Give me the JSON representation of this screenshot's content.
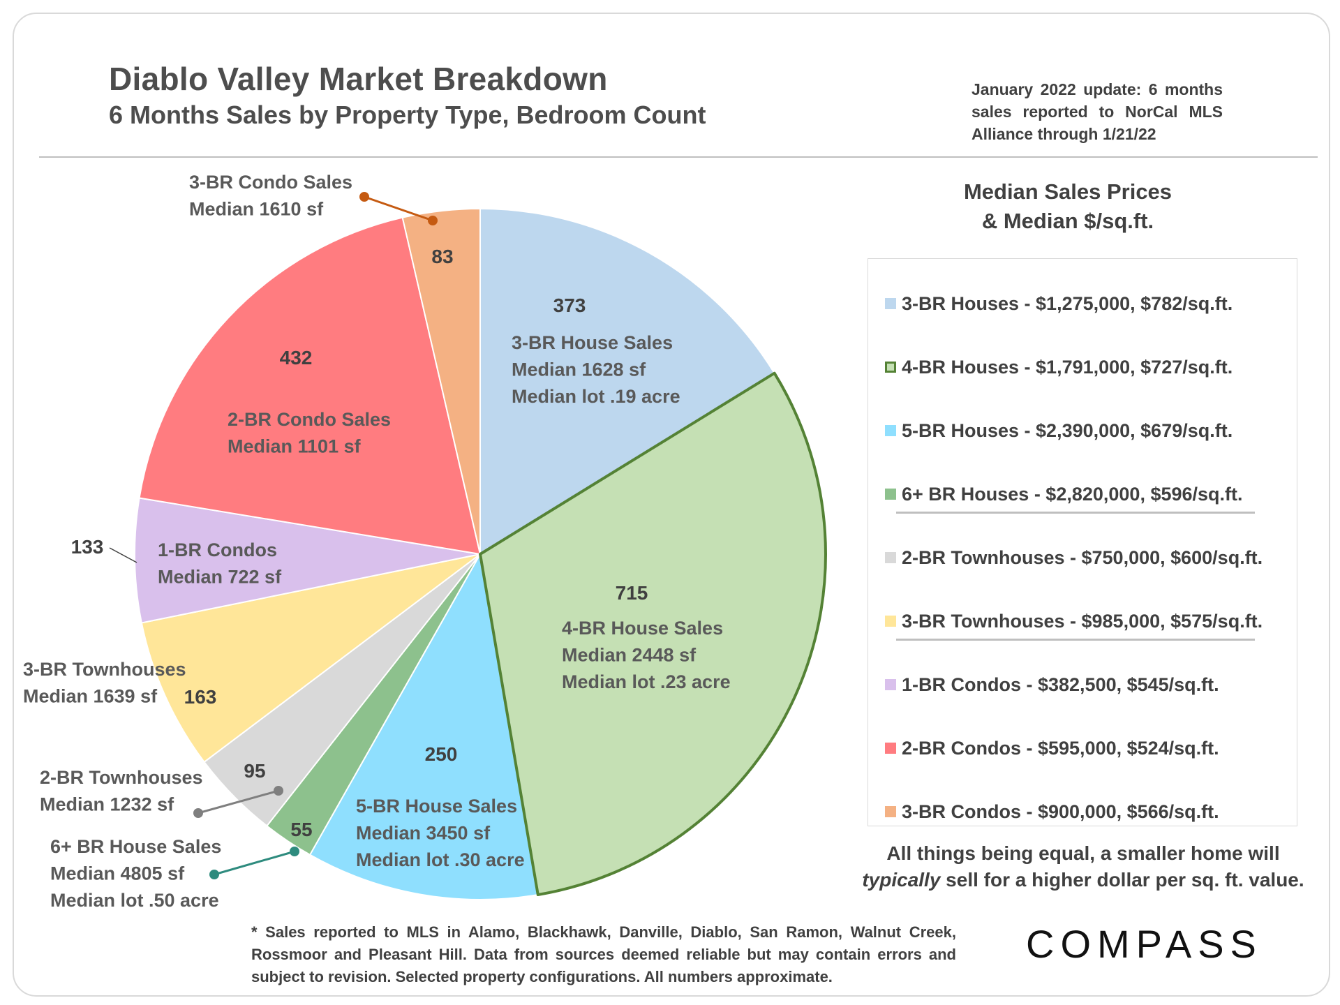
{
  "header": {
    "title": "Diablo Valley Market Breakdown",
    "subtitle": "6 Months Sales by Property Type, Bedroom Count",
    "update_note": "January 2022 update: 6 months sales reported to NorCal MLS Alliance through 1/21/22"
  },
  "legend": {
    "heading_line1": "Median Sales Prices",
    "heading_line2": "& Median $/sq.ft.",
    "items": [
      {
        "label": "3-BR Houses - $1,275,000, $782/sq.ft.",
        "color": "#bdd7ee"
      },
      {
        "label": "4-BR Houses - $1,791,000, $727/sq.ft.",
        "color": "#c5e0b4",
        "border": "#548235"
      },
      {
        "label": "5-BR Houses - $2,390,000, $679/sq.ft.",
        "color": "#8fdffe"
      },
      {
        "label": "6+ BR Houses - $2,820,000, $596/sq.ft.",
        "color": "#8dc18d"
      },
      {
        "label": "2-BR Townhouses - $750,000, $600/sq.ft.",
        "color": "#d9d9d9"
      },
      {
        "label": "3-BR Townhouses - $985,000, $575/sq.ft.",
        "color": "#ffe699"
      },
      {
        "label": "1-BR Condos - $382,500, $545/sq.ft.",
        "color": "#d9c0ec"
      },
      {
        "label": "2-BR Condos - $595,000, $524/sq.ft.",
        "color": "#ff7c80"
      },
      {
        "label": "3-BR Condos - $900,000, $566/sq.ft.",
        "color": "#f4b183"
      }
    ]
  },
  "note": {
    "line1": "All things being equal, a smaller home will",
    "line2_italic": "typically",
    "line2_rest": " sell for a higher dollar per sq. ft. value."
  },
  "footnote": "* Sales reported to MLS in Alamo, Blackhawk, Danville, Diablo, San Ramon, Walnut Creek, Rossmoor and Pleasant Hill. Data from sources deemed reliable but may contain errors and subject to revision. Selected property configurations. All numbers approximate.",
  "brand": "COMPASS",
  "chart_data": {
    "type": "pie",
    "title": "Diablo Valley Market Breakdown",
    "subtitle": "6 Months Sales by Property Type, Bedroom Count",
    "start_angle_deg": 0,
    "direction": "clockwise",
    "slices": [
      {
        "key": "3br-house",
        "value": 373,
        "value_label": "373",
        "label": [
          "3-BR House Sales",
          "Median 1628 sf",
          "Median lot .19 acre"
        ],
        "color": "#bdd7ee"
      },
      {
        "key": "4br-house",
        "value": 715,
        "value_label": "715",
        "label": [
          "4-BR House Sales",
          "Median 2448 sf",
          "Median lot .23 acre"
        ],
        "color": "#c5e0b4",
        "stroke": "#548235"
      },
      {
        "key": "5br-house",
        "value": 250,
        "value_label": "250",
        "label": [
          "5-BR House Sales",
          "Median 3450 sf",
          "Median lot .30 acre"
        ],
        "color": "#8fdffe"
      },
      {
        "key": "6br-house",
        "value": 55,
        "value_label": "55",
        "label": [
          "6+ BR House Sales",
          "Median 4805 sf",
          "Median lot .50 acre"
        ],
        "color": "#8dc18d"
      },
      {
        "key": "2br-townhouse",
        "value": 95,
        "value_label": "95",
        "label": [
          "2-BR Townhouses",
          "Median 1232 sf"
        ],
        "color": "#d9d9d9"
      },
      {
        "key": "3br-townhouse",
        "value": 163,
        "value_label": "163",
        "label": [
          "3-BR Townhouses",
          "Median 1639 sf"
        ],
        "color": "#ffe699"
      },
      {
        "key": "1br-condo",
        "value": 133,
        "value_label": "133",
        "label": [
          "1-BR Condos",
          "Median 722 sf"
        ],
        "color": "#d9c0ec"
      },
      {
        "key": "2br-condo",
        "value": 432,
        "value_label": "432",
        "label": [
          "2-BR Condo Sales",
          "Median 1101 sf"
        ],
        "color": "#ff7c80"
      },
      {
        "key": "3br-condo",
        "value": 83,
        "value_label": "83",
        "label": [
          "3-BR Condo Sales",
          "Median 1610 sf"
        ],
        "color": "#f4b183"
      }
    ]
  }
}
